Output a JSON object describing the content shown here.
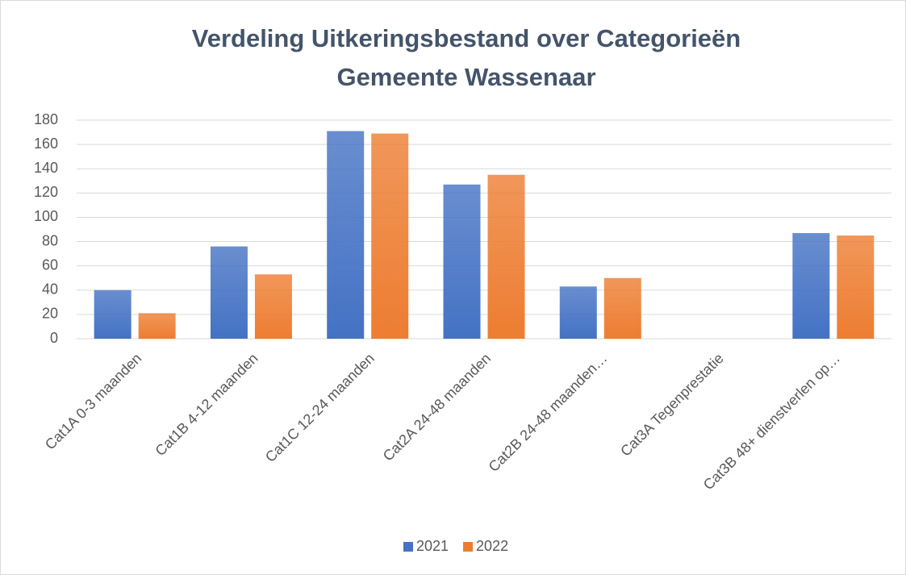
{
  "chart_data": {
    "type": "bar",
    "title": [
      "Verdeling Uitkeringsbestand over Categorieën",
      "Gemeente Wassenaar"
    ],
    "categories": [
      "Cat1A 0-3 maanden",
      "Cat1B 4-12 maanden",
      "Cat1C 12-24 maanden",
      "Cat2A 24-48 maanden",
      "Cat2B 24-48 maanden…",
      "Cat3A Tegenprestatie",
      "Cat3B 48+ dienstverlen op…"
    ],
    "series": [
      {
        "name": "2021",
        "color": "#4472c4",
        "values": [
          40,
          76,
          171,
          127,
          43,
          0,
          87
        ]
      },
      {
        "name": "2022",
        "color": "#ed7d31",
        "values": [
          21,
          53,
          169,
          135,
          50,
          0,
          85
        ]
      }
    ],
    "ylim": [
      0,
      180
    ],
    "yticks": [
      0,
      20,
      40,
      60,
      80,
      100,
      120,
      140,
      160,
      180
    ],
    "grid": true,
    "legend": "bottom"
  }
}
